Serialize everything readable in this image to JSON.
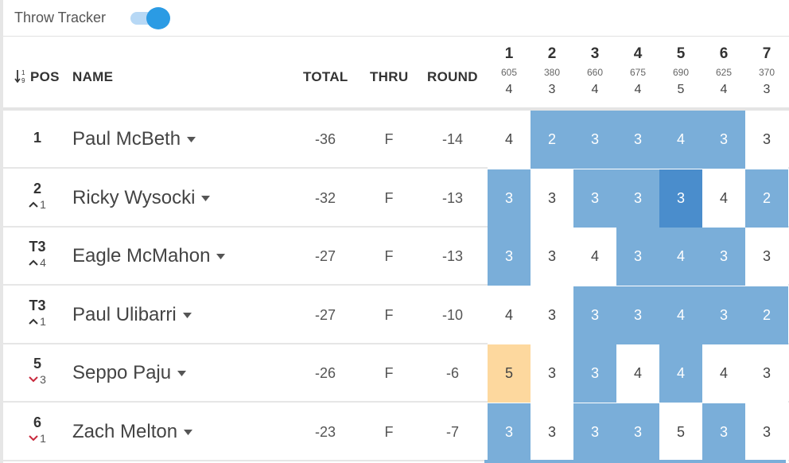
{
  "tracker": {
    "label": "Throw Tracker",
    "enabled": true
  },
  "colors": {
    "toggle_accent": "#2b9be4",
    "birdie": "#7aaed9",
    "eagle": "#4a8dcc",
    "bogey": "#fdd89e"
  },
  "header": {
    "pos": "POS",
    "name": "NAME",
    "total": "TOTAL",
    "thru": "THRU",
    "round": "ROUND",
    "holes": [
      {
        "num": "1",
        "dist": "605",
        "par": "4"
      },
      {
        "num": "2",
        "dist": "380",
        "par": "3"
      },
      {
        "num": "3",
        "dist": "660",
        "par": "4"
      },
      {
        "num": "4",
        "dist": "675",
        "par": "4"
      },
      {
        "num": "5",
        "dist": "690",
        "par": "5"
      },
      {
        "num": "6",
        "dist": "625",
        "par": "4"
      },
      {
        "num": "7",
        "dist": "370",
        "par": "3"
      }
    ]
  },
  "players": [
    {
      "pos": "1",
      "move": "",
      "dir": "",
      "name": "Paul McBeth",
      "total": "-36",
      "thru": "F",
      "round": "-14",
      "scores": [
        "4",
        "2",
        "3",
        "3",
        "4",
        "3",
        "3"
      ],
      "types": [
        "par",
        "birdie",
        "birdie",
        "birdie",
        "birdie",
        "birdie",
        "par"
      ]
    },
    {
      "pos": "2",
      "move": "1",
      "dir": "up",
      "name": "Ricky Wysocki",
      "total": "-32",
      "thru": "F",
      "round": "-13",
      "scores": [
        "3",
        "3",
        "3",
        "3",
        "3",
        "4",
        "2"
      ],
      "types": [
        "birdie",
        "par",
        "birdie",
        "birdie",
        "eagle",
        "par",
        "birdie"
      ]
    },
    {
      "pos": "T3",
      "move": "4",
      "dir": "up",
      "name": "Eagle McMahon",
      "total": "-27",
      "thru": "F",
      "round": "-13",
      "scores": [
        "3",
        "3",
        "4",
        "3",
        "4",
        "3",
        "3"
      ],
      "types": [
        "birdie",
        "par",
        "par",
        "birdie",
        "birdie",
        "birdie",
        "par"
      ]
    },
    {
      "pos": "T3",
      "move": "1",
      "dir": "up",
      "name": "Paul Ulibarri",
      "total": "-27",
      "thru": "F",
      "round": "-10",
      "scores": [
        "4",
        "3",
        "3",
        "3",
        "4",
        "3",
        "2"
      ],
      "types": [
        "par",
        "par",
        "birdie",
        "birdie",
        "birdie",
        "birdie",
        "birdie"
      ]
    },
    {
      "pos": "5",
      "move": "3",
      "dir": "down",
      "name": "Seppo Paju",
      "total": "-26",
      "thru": "F",
      "round": "-6",
      "scores": [
        "5",
        "3",
        "3",
        "4",
        "4",
        "4",
        "3"
      ],
      "types": [
        "bogey",
        "par",
        "birdie",
        "par",
        "birdie",
        "par",
        "par"
      ]
    },
    {
      "pos": "6",
      "move": "1",
      "dir": "down",
      "name": "Zach Melton",
      "total": "-23",
      "thru": "F",
      "round": "-7",
      "scores": [
        "3",
        "3",
        "3",
        "3",
        "5",
        "3",
        "3"
      ],
      "types": [
        "birdie",
        "par",
        "birdie",
        "birdie",
        "par",
        "birdie",
        "par"
      ]
    }
  ]
}
